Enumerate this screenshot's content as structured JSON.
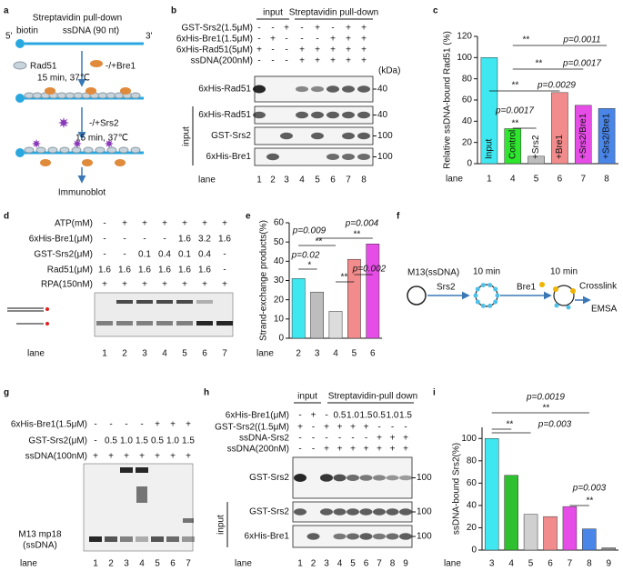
{
  "panel_labels": [
    "a",
    "b",
    "c",
    "d",
    "e",
    "f",
    "g",
    "h",
    "i"
  ],
  "panel_a": {
    "title": "Streptavidin pull-down",
    "biotin": "biotin",
    "ssdna": "ssDNA (90 nt)",
    "end5": "5'",
    "end3": "3'",
    "rad51": "Rad51",
    "bre1": "-/+Bre1",
    "incubation1": "15 min, 37℃",
    "srs2": "-/+Srs2",
    "incubation2": "15 min, 37℃",
    "readout": "Immunoblot"
  },
  "panel_b": {
    "input": "input",
    "pulldown": "Streptavidin pull-down",
    "rows": [
      {
        "label": "GST-Srs2(1.5μM)",
        "values": [
          "-",
          "-",
          "+",
          "-",
          "+",
          "-",
          "+",
          "+"
        ]
      },
      {
        "label": "6xHis-Bre1(1.5μM)",
        "values": [
          "-",
          "+",
          "-",
          "-",
          "-",
          "+",
          "+",
          "+"
        ]
      },
      {
        "label": "6xHis-Rad51(5μM)",
        "values": [
          "+",
          "-",
          "-",
          "+",
          "+",
          "+",
          "+",
          "+"
        ]
      },
      {
        "label": "ssDNA(200nM)",
        "values": [
          "-",
          "-",
          "-",
          "+",
          "+",
          "+",
          "+",
          "+"
        ]
      }
    ],
    "kda": "(kDa)",
    "blots": [
      {
        "label": "6xHis-Rad51",
        "marker": "40"
      },
      {
        "label": "6xHis-Rad51",
        "marker": "40"
      },
      {
        "label": "GST-Srs2",
        "marker": "100"
      },
      {
        "label": "6xHis-Bre1",
        "marker": "100"
      }
    ],
    "input_side": "input",
    "lane_label": "lane",
    "lanes": [
      "1",
      "2",
      "3",
      "4",
      "5",
      "6",
      "7",
      "8"
    ]
  },
  "panel_d": {
    "rows": [
      {
        "label": "ATP(mM)",
        "values": [
          "-",
          "+",
          "+",
          "+",
          "+",
          "+",
          "+"
        ]
      },
      {
        "label": "6xHis-Bre1(μM)",
        "values": [
          "-",
          "-",
          "-",
          "-",
          "1.6",
          "3.2",
          "1.6"
        ]
      },
      {
        "label": "GST-Srs2(μM)",
        "values": [
          "-",
          "-",
          "0.1",
          "0.4",
          "0.1",
          "0.4",
          "-"
        ]
      },
      {
        "label": "Rad51(μM)",
        "values": [
          "1.6",
          "1.6",
          "1.6",
          "1.6",
          "1.6",
          "1.6",
          "-"
        ]
      },
      {
        "label": "RPA(150nM)",
        "values": [
          "+",
          "+",
          "+",
          "+",
          "+",
          "+",
          "+"
        ]
      }
    ],
    "lane_label": "lane",
    "lanes": [
      "1",
      "2",
      "3",
      "4",
      "5",
      "6",
      "7"
    ]
  },
  "panel_f": {
    "substrate": "M13(ssDNA)",
    "srs2": "Srs2",
    "time1": "10 min",
    "bre1": "Bre1",
    "time2": "10 min",
    "crosslink": "Crosslink",
    "readout": "EMSA"
  },
  "panel_g": {
    "rows": [
      {
        "label": "6xHis-Bre1(1.5μM)",
        "values": [
          "-",
          "-",
          "-",
          "-",
          "+",
          "+",
          "+"
        ]
      },
      {
        "label": "GST-Srs2(μM)",
        "values": [
          "-",
          "0.5",
          "1.0",
          "1.5",
          "0.5",
          "1.0",
          "1.5"
        ]
      },
      {
        "label": "ssDNA(100nM)",
        "values": [
          "+",
          "+",
          "+",
          "+",
          "+",
          "+",
          "+"
        ]
      }
    ],
    "sample": [
      "M13 mp18",
      "(ssDNA)"
    ],
    "lane_label": "lane",
    "lanes": [
      "1",
      "2",
      "3",
      "4",
      "5",
      "6",
      "7"
    ]
  },
  "panel_h": {
    "input": "input",
    "pulldown": "Streptavidin-pull down",
    "rows": [
      {
        "label": "6xHis-Bre1(μM)",
        "values": [
          "-",
          "+",
          "-",
          "0.5",
          "1.0",
          "1.5",
          "0.5",
          "1.0",
          "1.5"
        ]
      },
      {
        "label": "GST-Srs2((1.5μM)",
        "values": [
          "+",
          "-",
          "+",
          "+",
          "+",
          "+",
          "-",
          "-",
          "-"
        ]
      },
      {
        "label": "ssDNA-Srs2",
        "values": [
          "-",
          "-",
          "-",
          "-",
          "-",
          "-",
          "+",
          "+",
          "+"
        ]
      },
      {
        "label": "ssDNA(200nM)",
        "values": [
          "-",
          "-",
          "+",
          "+",
          "+",
          "+",
          "+",
          "+",
          "+"
        ]
      }
    ],
    "blots": [
      {
        "label": "GST-Srs2",
        "marker": "100"
      },
      {
        "label": "GST-Srs2",
        "marker": "100"
      },
      {
        "label": "6xHis-Bre1",
        "marker": "100"
      }
    ],
    "input_side": "input",
    "lane_label": "lane",
    "lanes": [
      "1",
      "2",
      "3",
      "4",
      "5",
      "6",
      "7",
      "8",
      "9"
    ]
  },
  "chart_data": [
    {
      "type": "bar",
      "ylabel": "Relative ssDNA-bound Rad51 (%)",
      "xlabel": "lane",
      "categories": [
        "1",
        "4",
        "5",
        "6",
        "7",
        "8"
      ],
      "values": [
        100,
        33,
        7,
        67,
        55,
        52
      ],
      "colors": [
        "#3fe8f0",
        "#2ee62e",
        "#bdbdbd",
        "#f28c8c",
        "#e64ce6",
        "#4a86e8"
      ],
      "bar_labels": [
        "Input",
        "Control",
        "+Srs2",
        "+Bre1",
        "+Srs2/Bre1",
        "+Srs2/Bre1"
      ],
      "ylim": [
        0,
        120
      ],
      "yticks": [
        0,
        20,
        40,
        60,
        80,
        100,
        120
      ],
      "annotations": [
        "**",
        "p=0.0011",
        "**",
        "p=0.0017",
        "**",
        "p=0.0029",
        "p=0.0017",
        "**"
      ]
    },
    {
      "type": "bar",
      "ylabel": "Strand-exchange products(%)",
      "xlabel": "lane",
      "categories": [
        "2",
        "3",
        "4",
        "5",
        "6"
      ],
      "values": [
        31,
        24,
        14,
        41,
        49
      ],
      "colors": [
        "#3fe8f0",
        "#bdbdbd",
        "#dcdcdc",
        "#f28c8c",
        "#e64ce6"
      ],
      "ylim": [
        0,
        60
      ],
      "yticks": [
        0,
        10,
        20,
        30,
        40,
        50,
        60
      ],
      "annotations": [
        "p=0.004",
        "**",
        "p=0.009",
        "**",
        "p=0.02",
        "*",
        "**",
        "p=0.002"
      ]
    },
    {
      "type": "bar",
      "ylabel": "ssDNA-bound Srs2(%)",
      "xlabel": "lane",
      "categories": [
        "3",
        "4",
        "5",
        "6",
        "7",
        "8",
        "9"
      ],
      "values": [
        100,
        67,
        32,
        30,
        39,
        19,
        2
      ],
      "colors": [
        "#3fe8f0",
        "#2ec02e",
        "#d0d0d0",
        "#f28c8c",
        "#e64ce6",
        "#4a86e8",
        "#888888"
      ],
      "ylim": [
        0,
        110
      ],
      "yticks": [
        0,
        20,
        40,
        60,
        80,
        100
      ],
      "annotations": [
        "p=0.0019",
        "**",
        "**",
        "p=0.003",
        "p=0.003",
        "**"
      ]
    }
  ]
}
